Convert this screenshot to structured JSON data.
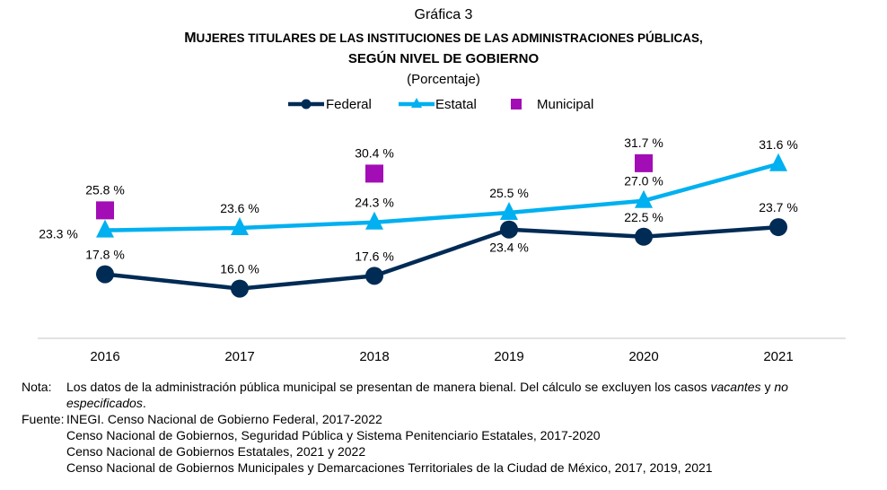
{
  "header": {
    "figure_label": "Gráfica 3",
    "title_line1_first": "M",
    "title_line1_rest": "UJERES TITULARES DE LAS INSTITUCIONES DE LAS ADMINISTRACIONES PÚBLICAS,",
    "title_line2": "SEGÚN NIVEL DE GOBIERNO",
    "subtitle": "(Porcentaje)"
  },
  "chart_data": {
    "type": "line",
    "title": "Mujeres titulares de las instituciones de las administraciones públicas, según nivel de gobierno",
    "subtitle": "(Porcentaje)",
    "xlabel": "",
    "ylabel": "",
    "categories": [
      "2016",
      "2017",
      "2018",
      "2019",
      "2020",
      "2021"
    ],
    "ylim": [
      10,
      34
    ],
    "grid": false,
    "legend_position": "top-center",
    "series": [
      {
        "name": "Federal",
        "marker": "circle",
        "color": "#002B55",
        "values": [
          17.8,
          16.0,
          17.6,
          23.4,
          22.5,
          23.7
        ],
        "labels": [
          "17.8 %",
          "16.0 %",
          "17.6 %",
          "23.4 %",
          "22.5 %",
          "23.7 %"
        ]
      },
      {
        "name": "Estatal",
        "marker": "triangle",
        "color": "#00B0F0",
        "values": [
          23.3,
          23.6,
          24.3,
          25.5,
          27.0,
          31.6
        ],
        "labels": [
          "23.3 %",
          "23.6 %",
          "24.3 %",
          "25.5 %",
          "27.0 %",
          "31.6 %"
        ]
      },
      {
        "name": "Municipal",
        "marker": "square",
        "color": "#A20DB5",
        "values": [
          25.8,
          null,
          30.4,
          null,
          31.7,
          null
        ],
        "labels": [
          "25.8 %",
          "",
          "30.4 %",
          "",
          "31.7 %",
          ""
        ]
      }
    ]
  },
  "notes": {
    "nota_label": "Nota:",
    "nota_text_1": "Los datos de la administración pública municipal se presentan de manera bienal. Del cálculo se excluyen los casos ",
    "nota_italic_1": "vacantes",
    "nota_text_2": " y ",
    "nota_italic_2": "no especificados",
    "nota_text_3": ".",
    "fuente_label": "Fuente:",
    "sources": [
      "INEGI. Censo Nacional de Gobierno Federal, 2017-2022",
      "Censo Nacional de Gobiernos, Seguridad Pública y Sistema Penitenciario Estatales, 2017-2020",
      "Censo Nacional de Gobiernos Estatales, 2021 y 2022",
      "Censo Nacional de Gobiernos Municipales y Demarcaciones Territoriales de la Ciudad de México, 2017, 2019, 2021"
    ]
  }
}
